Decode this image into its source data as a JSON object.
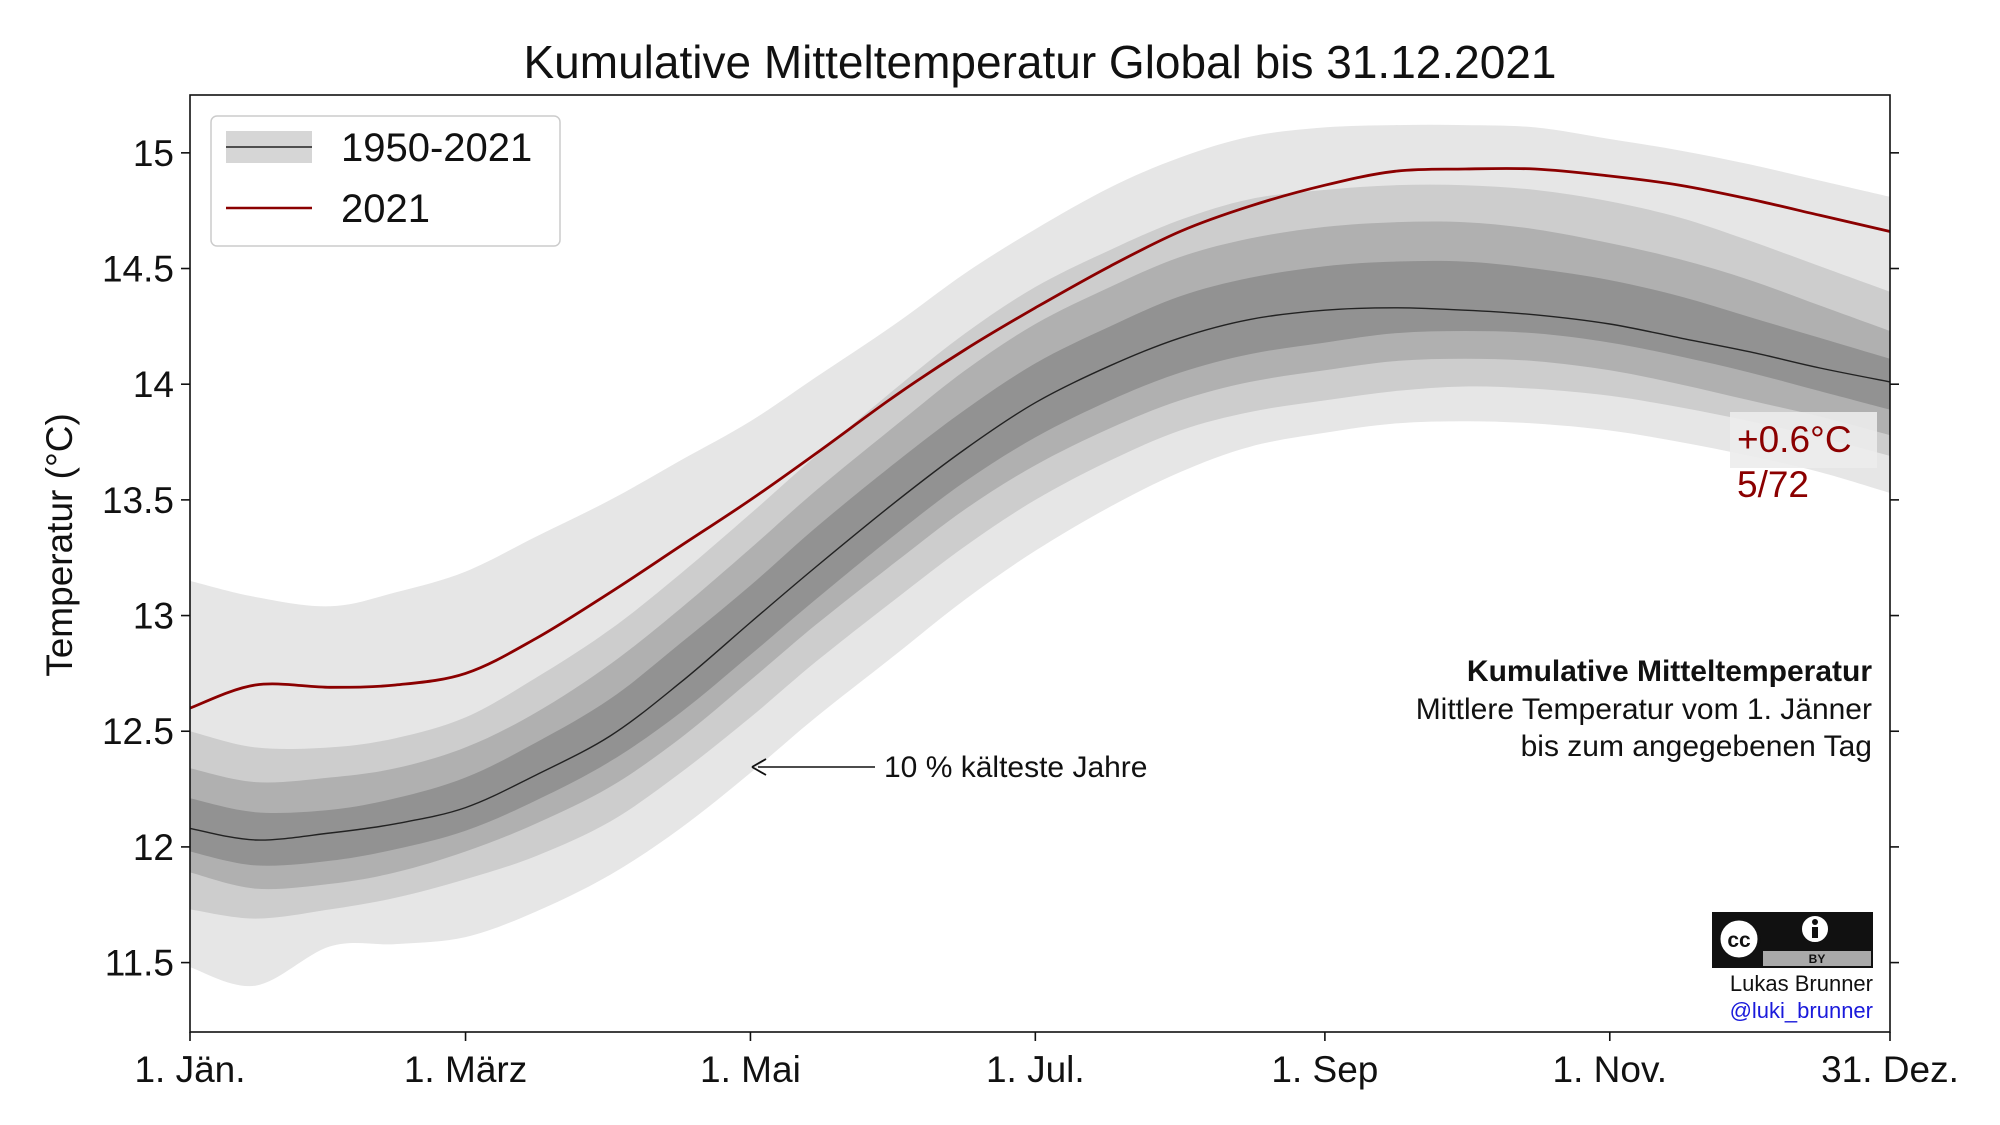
{
  "chart_data": {
    "type": "area",
    "title": "Kumulative Mitteltemperatur Global bis 31.12.2021",
    "ylabel": "Temperatur (°C)",
    "xlabel": "",
    "ylim": [
      11.2,
      15.25
    ],
    "xlim": [
      1,
      365
    ],
    "xticks": [
      {
        "day": 1,
        "label": "1. Jän."
      },
      {
        "day": 60,
        "label": "1. März"
      },
      {
        "day": 121,
        "label": "1. Mai"
      },
      {
        "day": 182,
        "label": "1. Jul."
      },
      {
        "day": 244,
        "label": "1. Sep"
      },
      {
        "day": 305,
        "label": "1. Nov."
      },
      {
        "day": 365,
        "label": "31. Dez."
      }
    ],
    "yticks": [
      {
        "value": 11.5,
        "label": "11.5"
      },
      {
        "value": 12,
        "label": "12"
      },
      {
        "value": 12.5,
        "label": "12.5"
      },
      {
        "value": 13,
        "label": "13"
      },
      {
        "value": 13.5,
        "label": "13.5"
      },
      {
        "value": 14,
        "label": "14"
      },
      {
        "value": 14.5,
        "label": "14.5"
      },
      {
        "value": 15,
        "label": "15"
      }
    ],
    "x": [
      1,
      15,
      31,
      45,
      60,
      75,
      91,
      106,
      121,
      135,
      152,
      167,
      182,
      198,
      213,
      228,
      244,
      259,
      274,
      289,
      305,
      320,
      335,
      350,
      365
    ],
    "bands": [
      {
        "name": "min-max",
        "lower": [
          11.48,
          11.4,
          11.57,
          11.58,
          11.61,
          11.72,
          11.88,
          12.08,
          12.32,
          12.56,
          12.83,
          13.07,
          13.28,
          13.47,
          13.62,
          13.73,
          13.79,
          13.83,
          13.84,
          13.83,
          13.8,
          13.75,
          13.69,
          13.62,
          13.53
        ],
        "upper": [
          13.15,
          13.08,
          13.04,
          13.1,
          13.19,
          13.34,
          13.5,
          13.67,
          13.84,
          14.03,
          14.26,
          14.48,
          14.67,
          14.85,
          14.98,
          15.07,
          15.11,
          15.12,
          15.12,
          15.11,
          15.06,
          15.01,
          14.95,
          14.88,
          14.81
        ]
      },
      {
        "name": "10-90%",
        "lower": [
          11.73,
          11.69,
          11.73,
          11.78,
          11.86,
          11.96,
          12.11,
          12.32,
          12.56,
          12.8,
          13.07,
          13.3,
          13.5,
          13.67,
          13.8,
          13.88,
          13.93,
          13.97,
          13.99,
          13.98,
          13.95,
          13.9,
          13.84,
          13.77,
          13.69
        ],
        "upper": [
          12.5,
          12.43,
          12.43,
          12.47,
          12.56,
          12.73,
          12.94,
          13.18,
          13.44,
          13.69,
          13.98,
          14.22,
          14.42,
          14.58,
          14.71,
          14.8,
          14.84,
          14.86,
          14.86,
          14.84,
          14.79,
          14.72,
          14.62,
          14.51,
          14.4
        ]
      },
      {
        "name": "20-80%",
        "lower": [
          11.89,
          11.82,
          11.84,
          11.89,
          11.98,
          12.1,
          12.26,
          12.47,
          12.72,
          12.96,
          13.23,
          13.46,
          13.65,
          13.81,
          13.93,
          14.01,
          14.06,
          14.1,
          14.11,
          14.1,
          14.06,
          14.0,
          13.93,
          13.86,
          13.78
        ],
        "upper": [
          12.34,
          12.28,
          12.3,
          12.34,
          12.43,
          12.58,
          12.79,
          13.03,
          13.29,
          13.54,
          13.82,
          14.06,
          14.26,
          14.42,
          14.55,
          14.63,
          14.68,
          14.7,
          14.7,
          14.67,
          14.61,
          14.54,
          14.45,
          14.34,
          14.23
        ]
      },
      {
        "name": "30-70%",
        "lower": [
          11.98,
          11.92,
          11.94,
          11.99,
          12.07,
          12.2,
          12.37,
          12.58,
          12.83,
          13.07,
          13.35,
          13.58,
          13.77,
          13.93,
          14.05,
          14.13,
          14.18,
          14.22,
          14.23,
          14.22,
          14.18,
          14.12,
          14.05,
          13.97,
          13.89
        ],
        "upper": [
          12.21,
          12.15,
          12.16,
          12.21,
          12.3,
          12.45,
          12.64,
          12.88,
          13.13,
          13.38,
          13.66,
          13.89,
          14.09,
          14.25,
          14.38,
          14.46,
          14.51,
          14.53,
          14.53,
          14.5,
          14.45,
          14.38,
          14.29,
          14.2,
          14.11
        ]
      }
    ],
    "series": [
      {
        "name": "1950-2021",
        "color": "#222222",
        "values": [
          12.08,
          12.03,
          12.06,
          12.1,
          12.17,
          12.31,
          12.48,
          12.71,
          12.97,
          13.21,
          13.49,
          13.72,
          13.92,
          14.08,
          14.2,
          14.28,
          14.32,
          14.33,
          14.32,
          14.3,
          14.26,
          14.2,
          14.14,
          14.07,
          14.01
        ]
      },
      {
        "name": "2021",
        "color": "#8b0000",
        "values": [
          12.6,
          12.7,
          12.69,
          12.7,
          12.75,
          12.9,
          13.1,
          13.3,
          13.5,
          13.7,
          13.95,
          14.15,
          14.33,
          14.51,
          14.66,
          14.77,
          14.86,
          14.92,
          14.93,
          14.93,
          14.9,
          14.86,
          14.8,
          14.73,
          14.66
        ]
      }
    ],
    "legend": {
      "position": "top-left",
      "entries": [
        {
          "label": "1950-2021",
          "type": "band-line"
        },
        {
          "label": "2021",
          "type": "line"
        }
      ]
    },
    "end_annotation": {
      "value": "+0.6°C",
      "rank": "5/72"
    },
    "arrow_annotation": {
      "text": "10 % kälteste Jahre",
      "day": 121,
      "value": 12.37
    },
    "description": {
      "title": "Kumulative Mitteltemperatur",
      "line1": "Mittlere Temperatur vom 1. Jänner",
      "line2": "bis zum angegebenen Tag"
    },
    "credit": {
      "badge": "BY",
      "author": "Lukas Brunner",
      "handle": "@luki_brunner"
    },
    "band_colors": [
      "#e6e6e6",
      "#cdcdcd",
      "#b0b0b0",
      "#929292"
    ],
    "grid": false
  }
}
